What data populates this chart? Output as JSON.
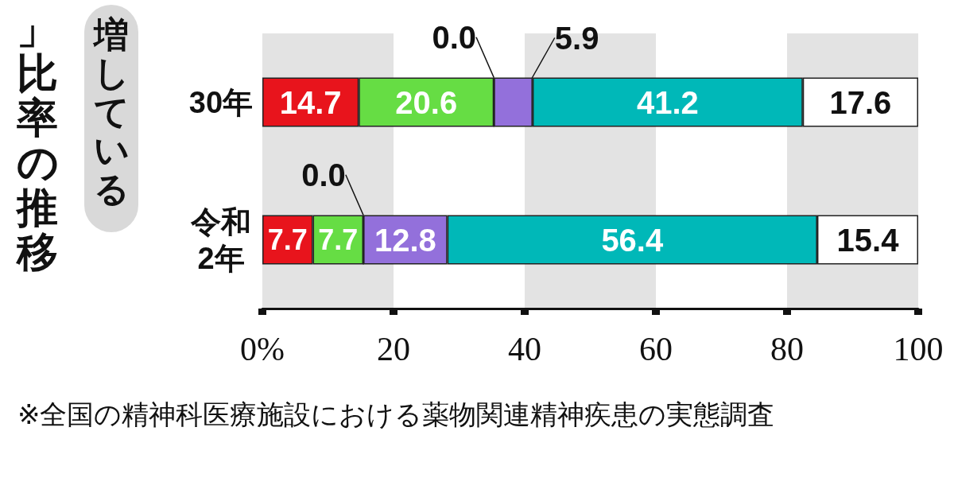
{
  "chart_data": {
    "type": "bar",
    "orientation": "horizontal",
    "stacked": true,
    "title": "」比率の推移",
    "subtitle": "増している",
    "categories": [
      "30年",
      "令和2年"
    ],
    "series": [
      {
        "color": "#e8141c",
        "values": [
          14.7,
          7.7
        ],
        "value_labels": [
          "14.7",
          "7.7"
        ]
      },
      {
        "color": "#66dd44",
        "values": [
          20.6,
          7.7
        ],
        "value_labels": [
          "20.6",
          "7.7"
        ]
      },
      {
        "values": [
          0.0,
          0.0
        ],
        "value_labels": [
          "0.0",
          "0.0"
        ]
      },
      {
        "color": "#9370db",
        "values": [
          5.9,
          12.8
        ],
        "value_labels": [
          "5.9",
          "12.8"
        ]
      },
      {
        "color": "#00b8b8",
        "values": [
          41.2,
          56.4
        ],
        "value_labels": [
          "41.2",
          "56.4"
        ]
      },
      {
        "color": "#ffffff",
        "values": [
          17.6,
          15.4
        ],
        "value_labels": [
          "17.6",
          "15.4"
        ]
      }
    ],
    "xlim": [
      0,
      100
    ],
    "xticks": [
      {
        "value": 0,
        "label": "0%"
      },
      20,
      40,
      60,
      80,
      100
    ],
    "bands": [
      {
        "axis": "x",
        "from": 0,
        "to": 20,
        "color": "#e3e3e3"
      },
      {
        "axis": "x",
        "from": 40,
        "to": 60,
        "color": "#e3e3e3"
      },
      {
        "axis": "x",
        "from": 80,
        "to": 100,
        "color": "#e3e3e3"
      }
    ],
    "grid": false,
    "annotations": [
      "※全国の精神科医療施設における薬物関連精神疾患の実態調査"
    ]
  }
}
